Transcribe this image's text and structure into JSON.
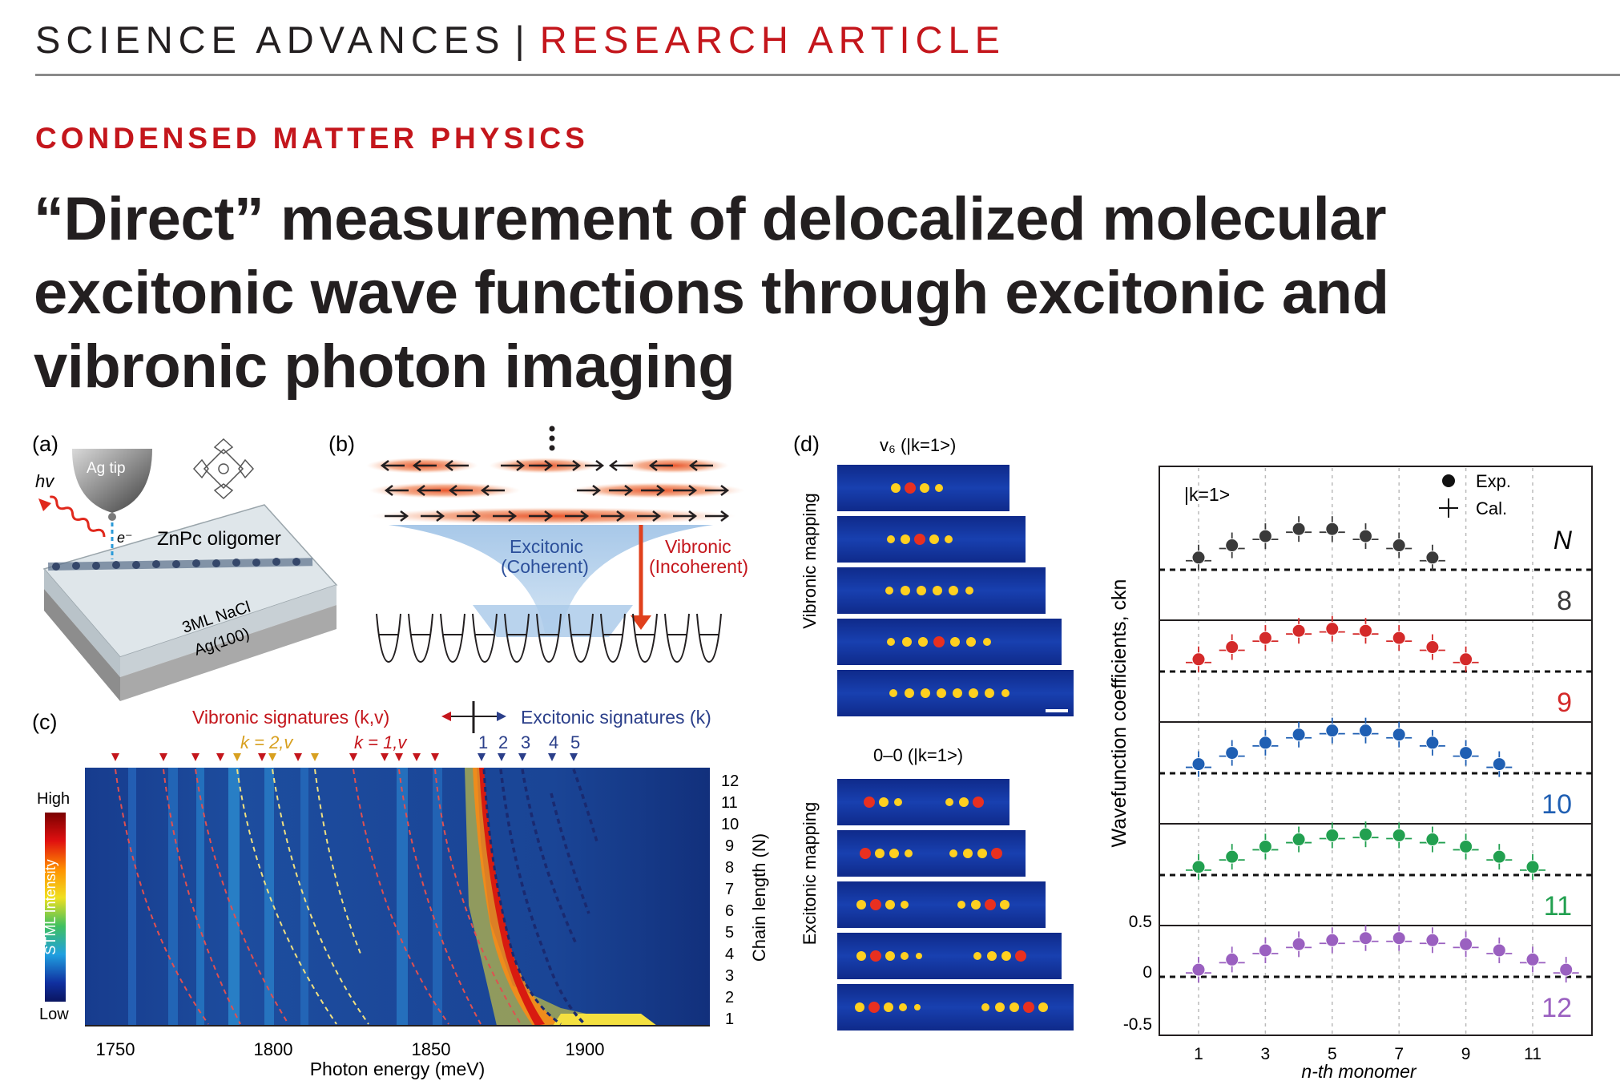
{
  "header": {
    "journal": "SCIENCE ADVANCES",
    "separator": "|",
    "article_type": "RESEARCH ARTICLE"
  },
  "section": "CONDENSED MATTER PHYSICS",
  "title": "“Direct” measurement of delocalized molecular excitonic wave functions through excitonic and vibronic photon imaging",
  "colors": {
    "accent_red": "#c4161c",
    "text": "#231f20",
    "series_8": "#3a3a3a",
    "series_9": "#d42a2a",
    "series_10": "#1f5fb3",
    "series_11": "#22a050",
    "series_12": "#9a60c0"
  },
  "figure": {
    "panel_a": {
      "label": "(a)",
      "tip_label": "Ag tip",
      "photon_label": "hv",
      "electron_label": "e⁻",
      "molecule_label": "ZnPc oligomer",
      "substrate_top": "3ML NaCl",
      "substrate_bottom": "Ag(100)"
    },
    "panel_b": {
      "label": "(b)",
      "excitonic_line1": "Excitonic",
      "excitonic_line2": "(Coherent)",
      "vibronic_line1": "Vibronic",
      "vibronic_line2": "(Incoherent)"
    },
    "panel_c": {
      "label": "(c)",
      "vibronic_header": "Vibronic signatures (k,v)",
      "excitonic_header": "Excitonic signatures (k)",
      "k2_label": "k = 2,v",
      "k1_label": "k = 1,v",
      "exciton_numbers": [
        "1",
        "2",
        "3",
        "4",
        "5"
      ],
      "colorbar_high": "High",
      "colorbar_low": "Low",
      "colorbar_label": "STML Intensity",
      "xlabel": "Photon energy (meV)",
      "ylabel": "Chain length (N)",
      "x_ticks": [
        "1750",
        "1800",
        "1850",
        "1900"
      ],
      "y_ticks": [
        "12",
        "11",
        "10",
        "9",
        "8",
        "7",
        "6",
        "5",
        "4",
        "3",
        "2",
        "1"
      ]
    },
    "panel_d": {
      "label": "(d)",
      "top_title": "v₆ (|k=1>)",
      "top_side_label": "Vibronic mapping",
      "bottom_title": "0–0 (|k=1>)",
      "bottom_side_label": "Excitonic mapping"
    },
    "chart": {
      "state_label": "|k=1>",
      "legend_exp": "Exp.",
      "legend_cal": "Cal.",
      "n_label": "N",
      "ylabel": "Wavefunction coefficients, ckn",
      "xlabel": "n-th monomer",
      "y_ticks": [
        "0.5",
        "0",
        "-0.5"
      ],
      "x_ticks": [
        "1",
        "3",
        "5",
        "7",
        "9",
        "11"
      ]
    }
  },
  "chart_data": {
    "type": "scatter",
    "xlabel": "n-th monomer",
    "ylabel": "Wavefunction coefficients, ckn",
    "ylim_per_panel": [
      -0.5,
      0.5
    ],
    "series": [
      {
        "name": "8",
        "x": [
          1,
          2,
          3,
          4,
          5,
          6,
          7,
          8
        ],
        "values": [
          0.12,
          0.24,
          0.33,
          0.4,
          0.4,
          0.33,
          0.24,
          0.12
        ]
      },
      {
        "name": "9",
        "x": [
          1,
          2,
          3,
          4,
          5,
          6,
          7,
          8,
          9
        ],
        "values": [
          0.12,
          0.24,
          0.33,
          0.4,
          0.42,
          0.4,
          0.33,
          0.24,
          0.12
        ]
      },
      {
        "name": "10",
        "x": [
          1,
          2,
          3,
          4,
          5,
          6,
          7,
          8,
          9,
          10
        ],
        "values": [
          0.09,
          0.2,
          0.3,
          0.38,
          0.42,
          0.42,
          0.38,
          0.3,
          0.2,
          0.09
        ]
      },
      {
        "name": "11",
        "x": [
          1,
          2,
          3,
          4,
          5,
          6,
          7,
          8,
          9,
          10,
          11
        ],
        "values": [
          0.08,
          0.18,
          0.28,
          0.35,
          0.39,
          0.4,
          0.39,
          0.35,
          0.28,
          0.18,
          0.08
        ]
      },
      {
        "name": "12",
        "x": [
          1,
          2,
          3,
          4,
          5,
          6,
          7,
          8,
          9,
          10,
          11,
          12
        ],
        "values": [
          0.07,
          0.17,
          0.26,
          0.32,
          0.36,
          0.38,
          0.38,
          0.36,
          0.32,
          0.26,
          0.17,
          0.07
        ]
      }
    ]
  }
}
